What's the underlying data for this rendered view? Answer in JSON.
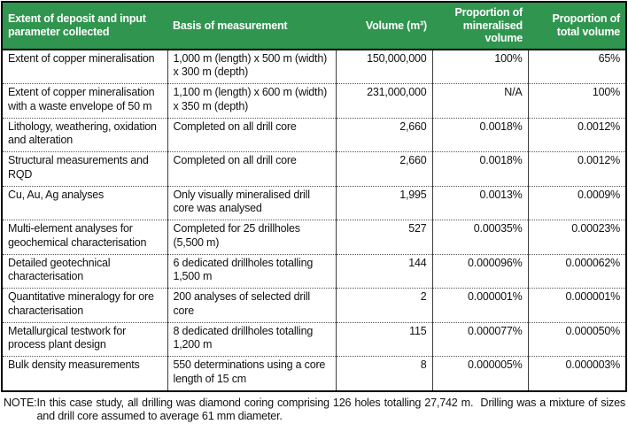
{
  "table": {
    "columns": [
      {
        "label": "Extent of deposit and input parameter collected",
        "align": "left"
      },
      {
        "label": "Basis of measurement",
        "align": "left"
      },
      {
        "label": "Volume (m³)",
        "align": "right"
      },
      {
        "label": "Proportion of mineralised volume",
        "align": "right"
      },
      {
        "label": "Proportion of total volume",
        "align": "right"
      }
    ],
    "rows": [
      {
        "param": "Extent of copper mineralisation",
        "basis": "1,000 m (length) x 500 m (width) x 300 m (depth)",
        "volume": "150,000,000",
        "prop_mineralised": "100%",
        "prop_total": "65%"
      },
      {
        "param": "Extent of copper mineralisation with a waste envelope of 50 m",
        "basis": "1,100 m (length) x 600 m (width) x 350 m (depth)",
        "volume": "231,000,000",
        "prop_mineralised": "N/A",
        "prop_total": "100%"
      },
      {
        "param": "Lithology, weathering, oxidation and alteration",
        "basis": "Completed on all drill core",
        "volume": "2,660",
        "prop_mineralised": "0.0018%",
        "prop_total": "0.0012%"
      },
      {
        "param": "Structural measurements and RQD",
        "basis": "Completed on all drill core",
        "volume": "2,660",
        "prop_mineralised": "0.0018%",
        "prop_total": "0.0012%"
      },
      {
        "param": "Cu, Au, Ag analyses",
        "basis": "Only visually mineralised drill core was analysed",
        "volume": "1,995",
        "prop_mineralised": "0.0013%",
        "prop_total": "0.0009%"
      },
      {
        "param": "Multi-element analyses for geochemical characterisation",
        "basis": "Completed for 25 drillholes (5,500 m)",
        "volume": "527",
        "prop_mineralised": "0.00035%",
        "prop_total": "0.00023%"
      },
      {
        "param": "Detailed geotechnical characterisation",
        "basis": "6 dedicated drillholes totalling 1,500 m",
        "volume": "144",
        "prop_mineralised": "0.000096%",
        "prop_total": "0.000062%"
      },
      {
        "param": "Quantitative mineralogy for ore characterisation",
        "basis": "200 analyses of selected drill core",
        "volume": "2",
        "prop_mineralised": "0.000001%",
        "prop_total": "0.000001%"
      },
      {
        "param": "Metallurgical testwork for process plant design",
        "basis": "8 dedicated drillholes totalling 1,200 m",
        "volume": "115",
        "prop_mineralised": "0.000077%",
        "prop_total": "0.000050%"
      },
      {
        "param": "Bulk density measurements",
        "basis": "550 determinations using a core length of 15 cm",
        "volume": "8",
        "prop_mineralised": "0.000005%",
        "prop_total": "0.000003%"
      }
    ]
  },
  "note": {
    "label": "NOTE:",
    "text": "In this case study, all drilling was diamond coring comprising 126 holes totalling 27,742 m.  Drilling was a mixture of sizes and drill core assumed to average 61 mm diameter."
  },
  "colors": {
    "header_bg": "#30954F",
    "header_text": "#FFFFFF",
    "border": "#000000"
  }
}
